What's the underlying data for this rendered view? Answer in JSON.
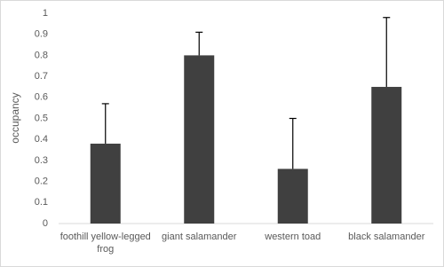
{
  "chart_data": {
    "type": "bar",
    "y_label": "occupancy",
    "categories": [
      "foothill yellow-legged frog",
      "giant salamander",
      "western toad",
      "black salamander"
    ],
    "values": [
      0.38,
      0.8,
      0.26,
      0.65
    ],
    "errors": [
      0.19,
      0.11,
      0.24,
      0.33
    ],
    "color": "#404040",
    "ylim": [
      0,
      1
    ],
    "yticks": [
      0,
      0.1,
      0.2,
      0.3,
      0.4,
      0.5,
      0.6,
      0.7,
      0.8,
      0.9,
      1
    ],
    "grid": false
  }
}
